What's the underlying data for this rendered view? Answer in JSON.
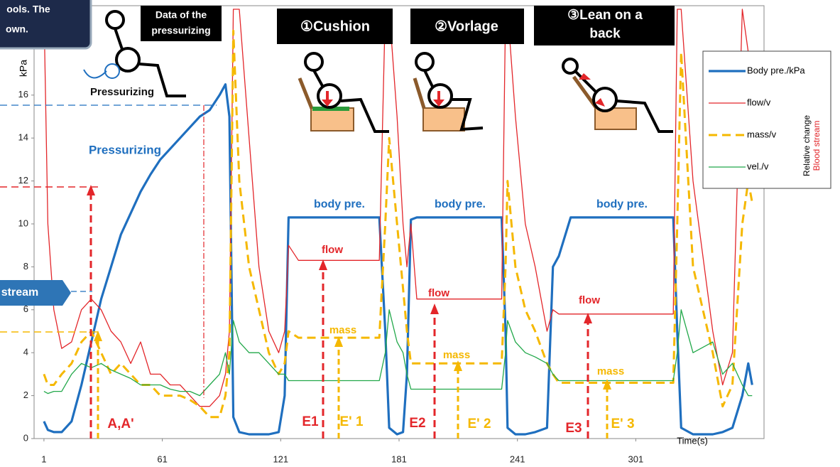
{
  "chart_data": {
    "type": "line",
    "x": [
      1,
      3,
      6,
      10,
      15,
      20,
      25,
      30,
      35,
      40,
      45,
      50,
      55,
      60,
      65,
      70,
      75,
      80,
      85,
      90,
      93,
      95,
      97,
      100,
      105,
      110,
      115,
      120,
      123,
      125,
      130,
      150,
      171,
      174,
      176,
      180,
      183,
      185,
      187,
      190,
      210,
      233,
      235,
      236,
      240,
      245,
      250,
      256,
      259,
      262,
      268,
      290,
      320,
      322,
      324,
      330,
      340,
      345,
      350,
      355,
      358,
      360
    ],
    "series": [
      {
        "name": "Body pre./kPa",
        "color": "#1f6fbf",
        "values": [
          0.8,
          0.4,
          0.3,
          0.3,
          0.8,
          2.5,
          4.5,
          6.5,
          8,
          9.5,
          10.5,
          11.5,
          12.3,
          13,
          13.5,
          14,
          14.5,
          15,
          15.3,
          16,
          16.5,
          15,
          1,
          0.3,
          0.2,
          0.2,
          0.2,
          0.3,
          2,
          10.3,
          10.3,
          10.3,
          10.3,
          5,
          0.5,
          0.2,
          0.3,
          3,
          10.2,
          10.3,
          10.3,
          10.3,
          5,
          0.5,
          0.2,
          0.2,
          0.3,
          0.5,
          8,
          8.5,
          10.3,
          10.3,
          10.3,
          5,
          0.5,
          0.2,
          0.2,
          0.3,
          0.5,
          2,
          3.5,
          2.5
        ]
      },
      {
        "name": "flow/v",
        "color": "#e3262a",
        "values": [
          20,
          10,
          6,
          4.2,
          4.5,
          6,
          6.5,
          6,
          5,
          4.5,
          3.5,
          4.5,
          3,
          3,
          2.5,
          2.5,
          2,
          1.5,
          1.5,
          2,
          3,
          5,
          20,
          20,
          14,
          8,
          5,
          4,
          5,
          9,
          8.3,
          8.3,
          8.3,
          20,
          20,
          15,
          10,
          8,
          10,
          6.5,
          6.5,
          6.5,
          20,
          20,
          15,
          10,
          8,
          5,
          6,
          5.8,
          5.8,
          5.8,
          5.8,
          20,
          20,
          12,
          5,
          2.5,
          4,
          20,
          18,
          15
        ]
      },
      {
        "name": "mass/v",
        "color": "#f5b800",
        "values": [
          3,
          2.5,
          2.5,
          3,
          3.5,
          4.5,
          5,
          4,
          3,
          3.5,
          3,
          2.5,
          2.5,
          2,
          2,
          2,
          1.8,
          1.5,
          1,
          1,
          2,
          4,
          19,
          12,
          8,
          6,
          4,
          3,
          3.5,
          5,
          4.7,
          4.7,
          4.7,
          10,
          14,
          10,
          7,
          5,
          3.5,
          3.5,
          3.5,
          3.5,
          8,
          12,
          8,
          6,
          5,
          3.5,
          3,
          2.6,
          2.6,
          2.6,
          2.6,
          10,
          18,
          8,
          4,
          1.5,
          2.5,
          10,
          12,
          11
        ]
      },
      {
        "name": "vel./v",
        "color": "#22a84a",
        "values": [
          2.2,
          2.1,
          2.2,
          2.2,
          3,
          3.5,
          3.3,
          3.5,
          3.2,
          3,
          2.8,
          2.5,
          2.5,
          2.5,
          2.3,
          2.2,
          2.2,
          2,
          2.5,
          3,
          4,
          3,
          5.5,
          4.5,
          4,
          4,
          3.5,
          3,
          3,
          2.7,
          2.7,
          2.7,
          2.7,
          4,
          6,
          4.5,
          4,
          3,
          2.3,
          2.3,
          2.3,
          2.3,
          4,
          5.5,
          4.5,
          4,
          3.8,
          3.5,
          3,
          2.7,
          2.7,
          2.7,
          2.7,
          4,
          6,
          4,
          4.5,
          3,
          3.5,
          2.5,
          2,
          2
        ]
      }
    ],
    "xlim": [
      -4,
      366
    ],
    "xticks": [
      1,
      61,
      121,
      181,
      241,
      301
    ],
    "ylim": [
      0,
      20
    ],
    "yticks": [
      0,
      2,
      4,
      6,
      8,
      10,
      12,
      14,
      16
    ],
    "y_label": "kPa",
    "x_label": "Time(s)",
    "legend_note": [
      "Relative change",
      "Blood stream"
    ],
    "legend": "upper right",
    "annotations": [
      "Data of the",
      "pressurizing",
      "①Cushion",
      "②Vorlage",
      "③Lean on a",
      "back",
      "Pressurizing",
      "Pressurizing",
      "body pre.",
      "body pre.",
      "body pre.",
      "flow",
      "flow",
      "flow",
      "mass",
      "mass",
      "mass",
      "A,A'",
      "E1",
      "E' 1",
      "E2",
      "E' 2",
      "E3",
      "E' 3",
      "stream",
      "ools. The",
      "own."
    ]
  }
}
